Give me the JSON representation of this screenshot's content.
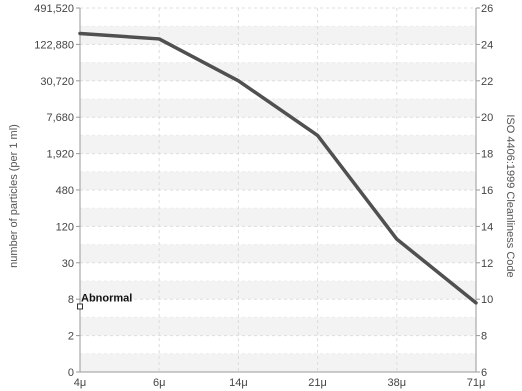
{
  "chart_data": {
    "type": "line",
    "title": "",
    "xlabel": "",
    "ylabel": "number of particles (per 1 ml)",
    "y2label": "ISO 4406:1999 Cleanliness Code",
    "x_categories": [
      "4μ",
      "6μ",
      "14μ",
      "21μ",
      "38μ",
      "71μ"
    ],
    "y_left_ticks": [
      "0",
      "2",
      "8",
      "30",
      "120",
      "480",
      "1,920",
      "7,680",
      "30,720",
      "122,880",
      "491,520"
    ],
    "y_right_ticks": [
      "6",
      "8",
      "10",
      "12",
      "14",
      "16",
      "18",
      "20",
      "22",
      "24",
      "26"
    ],
    "y_right_range": [
      6,
      26
    ],
    "series": [
      {
        "values": [
          24.6,
          24.3,
          22.0,
          19.0,
          13.3,
          9.8
        ]
      }
    ],
    "line_color": "#505050",
    "grid": true,
    "annotation": {
      "label": "Abnormal",
      "x_category": "4μ",
      "code": 9.6
    }
  }
}
